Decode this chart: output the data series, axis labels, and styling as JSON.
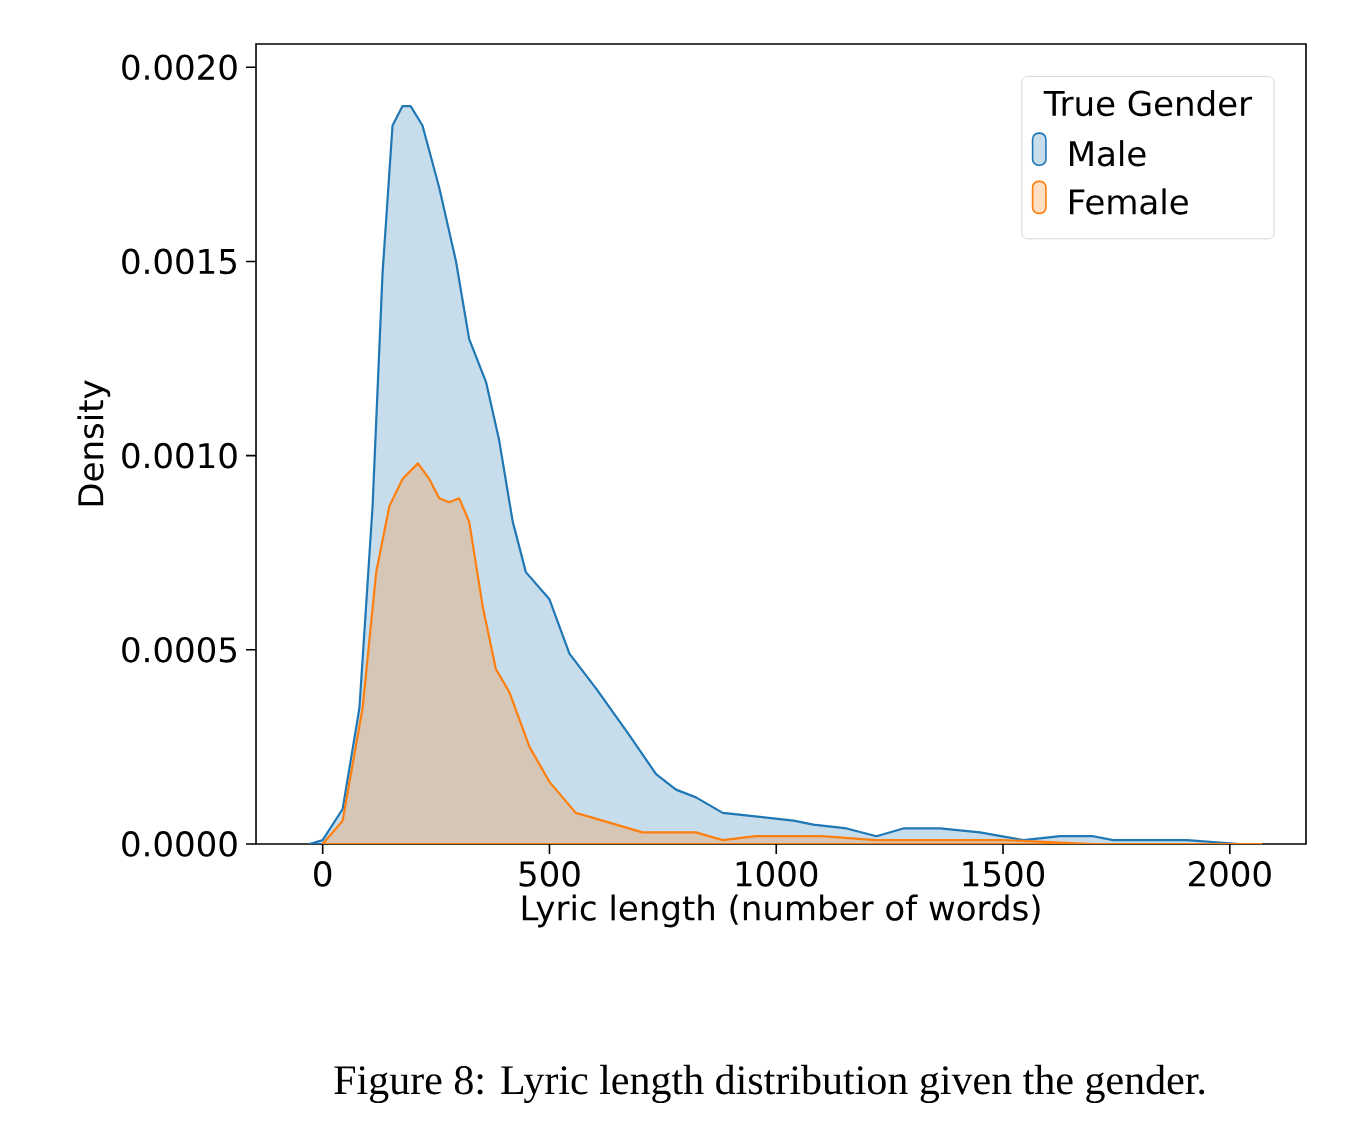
{
  "chart_data": {
    "type": "area",
    "xlabel": "Lyric length (number of words)",
    "ylabel": "Density",
    "legend_title": "True Gender",
    "annotations": [
      "Figure 8: Lyric length distribution given the gender."
    ],
    "xlim": [
      -147,
      2168
    ],
    "ylim": [
      0,
      0.00206
    ],
    "xticks": [
      0,
      500,
      1000,
      1500,
      2000
    ],
    "yticks": [
      {
        "value": 0,
        "label": "0.0000"
      },
      {
        "value": 0.0005,
        "label": "0.0005"
      },
      {
        "value": 0.001,
        "label": "0.0010"
      },
      {
        "value": 0.0015,
        "label": "0.0015"
      },
      {
        "value": 0.002,
        "label": "0.0020"
      }
    ],
    "legend": "top right",
    "grid": false,
    "marker": "none",
    "series": [
      {
        "name": "Male",
        "color": "#1f77b4",
        "x": [
          -29,
          0,
          44,
          81,
          110,
          132,
          154,
          176,
          194,
          220,
          257,
          294,
          323,
          360,
          389,
          419,
          448,
          500,
          544,
          603,
          676,
          735,
          779,
          823,
          882,
          964,
          1038,
          1082,
          1155,
          1221,
          1280,
          1361,
          1449,
          1545,
          1626,
          1699,
          1743,
          1817,
          1905,
          2022,
          2050
        ],
        "values": [
          0,
          1e-05,
          9e-05,
          0.00035,
          0.00087,
          0.00147,
          0.00185,
          0.0019,
          0.0019,
          0.00185,
          0.00169,
          0.0015,
          0.0013,
          0.00119,
          0.00104,
          0.00083,
          0.0007,
          0.00063,
          0.00049,
          0.0004,
          0.00028,
          0.00018,
          0.00014,
          0.00012,
          8e-05,
          7e-05,
          6e-05,
          5e-05,
          4e-05,
          2e-05,
          4e-05,
          4e-05,
          3e-05,
          1e-05,
          2e-05,
          2e-05,
          1e-05,
          1e-05,
          1e-05,
          0,
          0
        ]
      },
      {
        "name": "Female",
        "color": "#ff7f0e",
        "x": [
          0,
          44,
          88,
          118,
          147,
          176,
          210,
          235,
          257,
          279,
          301,
          323,
          353,
          382,
          412,
          456,
          500,
          558,
          617,
          705,
          823,
          882,
          955,
          1043,
          1100,
          1220,
          1300,
          1400,
          1500,
          1700,
          1900,
          2050,
          2070
        ],
        "values": [
          0,
          6e-05,
          0.00035,
          0.0007,
          0.00087,
          0.00094,
          0.00098,
          0.00094,
          0.00089,
          0.00088,
          0.00089,
          0.00083,
          0.00061,
          0.00045,
          0.00039,
          0.00025,
          0.00016,
          8e-05,
          6e-05,
          3e-05,
          3e-05,
          1e-05,
          2e-05,
          2e-05,
          2e-05,
          1e-05,
          1e-05,
          1e-05,
          1e-05,
          0,
          0,
          0,
          0
        ]
      }
    ]
  }
}
